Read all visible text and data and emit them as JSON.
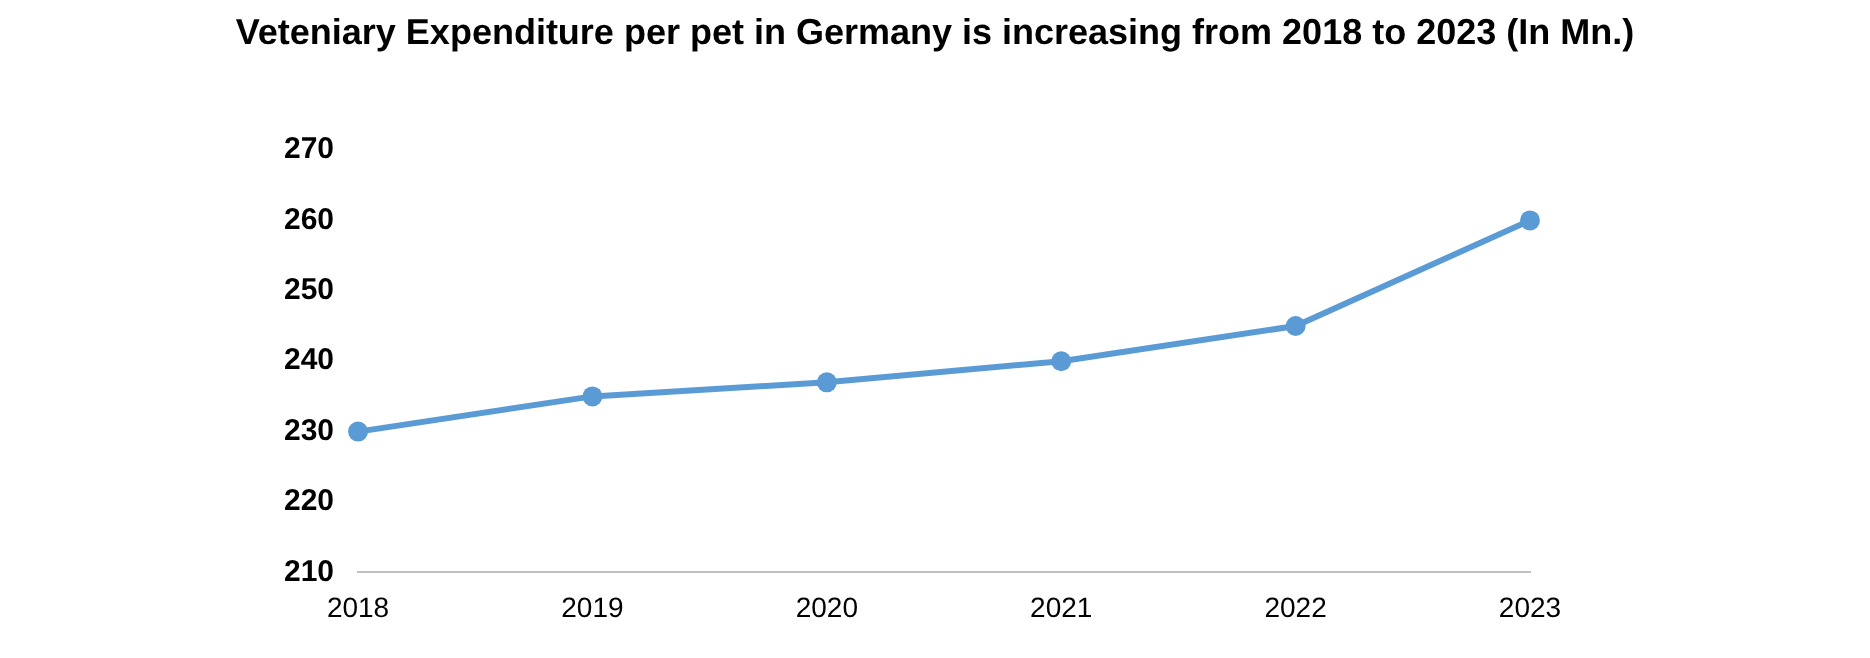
{
  "chart_data": {
    "type": "line",
    "title": "Veteniary Expenditure per pet in Germany is increasing from 2018 to 2023 (In Mn.)",
    "categories": [
      "2018",
      "2019",
      "2020",
      "2021",
      "2022",
      "2023"
    ],
    "series": [
      {
        "color": "#5b9bd5",
        "values": [
          230,
          235,
          237,
          240,
          245,
          260
        ]
      }
    ],
    "ylim": [
      210,
      270
    ],
    "yticks": [
      210,
      220,
      230,
      240,
      250,
      260,
      270
    ],
    "grid": false,
    "legend": false,
    "marker": "circle",
    "line_style": "solid"
  }
}
